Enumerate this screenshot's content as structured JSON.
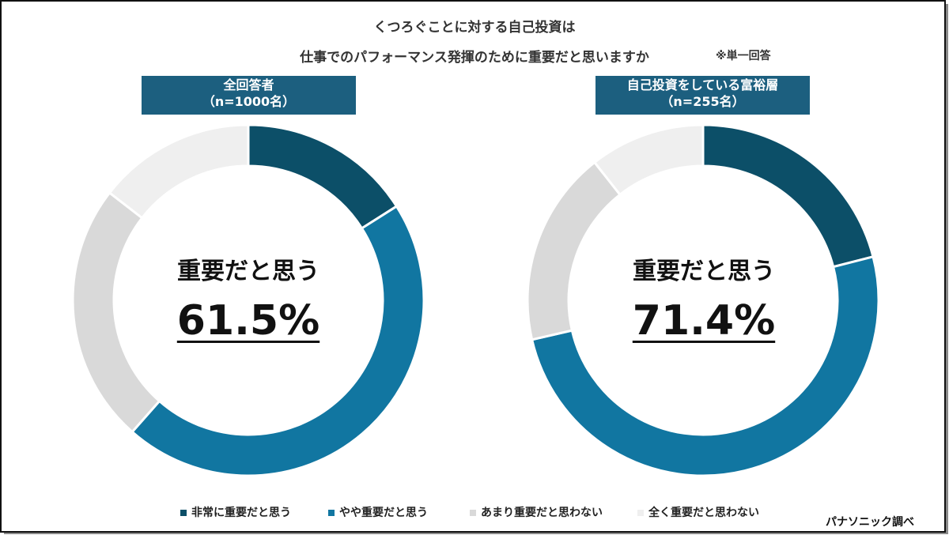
{
  "title_line1": "くつろぐことに対する自己投資は",
  "title_line2": "仕事でのパフォーマンス発揮のために重要だと思いますか",
  "note": "※単一回答",
  "source": "パナソニック調べ",
  "colors": {
    "very_important": "#0c4f68",
    "somewhat_important": "#1176a1",
    "not_very_important": "#d9d9d9",
    "not_at_all_important": "#efefef",
    "label_bg": "#1c5f7f"
  },
  "legend": [
    {
      "label": "非常に重要だと思う",
      "color": "#0c4f68"
    },
    {
      "label": "やや重要だと思う",
      "color": "#1176a1"
    },
    {
      "label": "あまり重要だと思わない",
      "color": "#d9d9d9"
    },
    {
      "label": "全く重要だと思わない",
      "color": "#efefef"
    }
  ],
  "chart_data": [
    {
      "type": "pie",
      "subtype": "donut",
      "group_label_line1": "全回答者",
      "group_label_line2": "（n=1000名）",
      "center_label": "重要だと思う",
      "center_value": "61.5%",
      "categories": [
        "非常に重要だと思う",
        "やや重要だと思う",
        "あまり重要だと思わない",
        "全く重要だと思わない"
      ],
      "values": [
        16.0,
        45.5,
        24.0,
        14.5
      ]
    },
    {
      "type": "pie",
      "subtype": "donut",
      "group_label_line1": "自己投資をしている富裕層",
      "group_label_line2": "（n=255名）",
      "center_label": "重要だと思う",
      "center_value": "71.4%",
      "categories": [
        "非常に重要だと思う",
        "やや重要だと思う",
        "あまり重要だと思わない",
        "全く重要だと思わない"
      ],
      "values": [
        21.0,
        50.4,
        18.0,
        10.6
      ]
    }
  ]
}
